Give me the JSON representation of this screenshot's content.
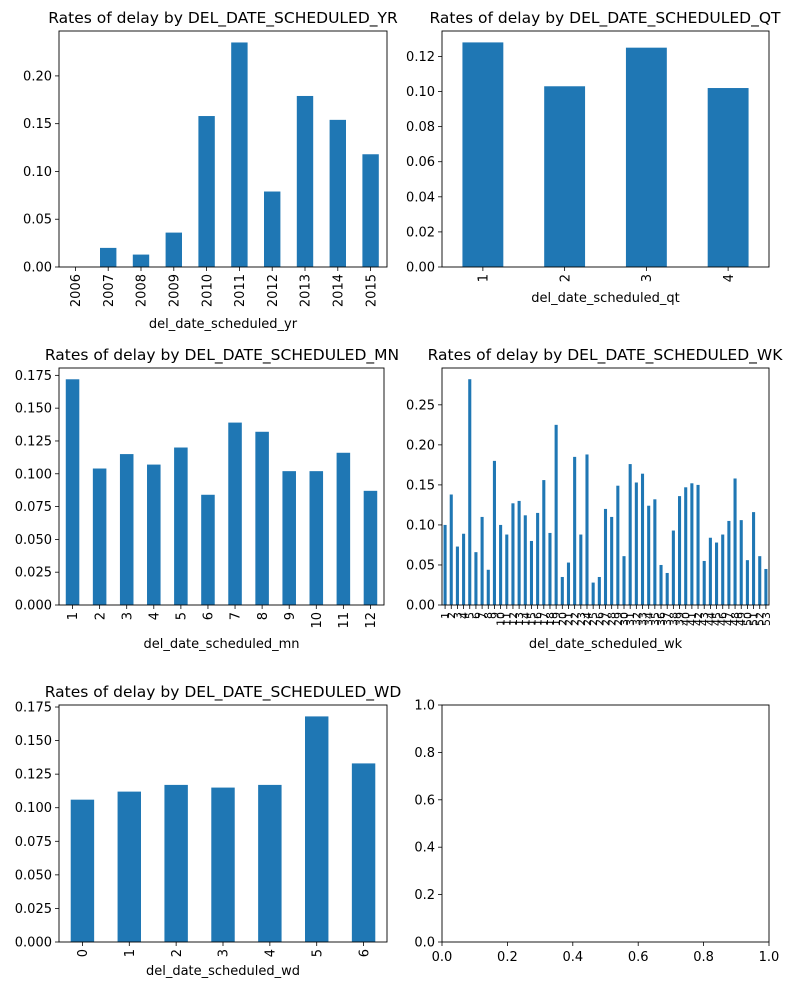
{
  "figure": {
    "background": "#ffffff",
    "bar_color": "#1f77b4"
  },
  "chart_data": [
    {
      "type": "bar",
      "title": "Rates of delay by DEL_DATE_SCHEDULED_YR",
      "xlabel": "del_date_scheduled_yr",
      "ylabel": "",
      "categories": [
        "2006",
        "2007",
        "2008",
        "2009",
        "2010",
        "2011",
        "2012",
        "2013",
        "2014",
        "2015"
      ],
      "values": [
        0.0,
        0.02,
        0.013,
        0.036,
        0.158,
        0.235,
        0.079,
        0.179,
        0.154,
        0.118
      ],
      "ylim": [
        0,
        0.247
      ],
      "yticks": [
        "0.00",
        "0.05",
        "0.10",
        "0.15",
        "0.20"
      ],
      "ytick_values": [
        0,
        0.05,
        0.1,
        0.15,
        0.2
      ],
      "grid": false,
      "legend": "none"
    },
    {
      "type": "bar",
      "title": "Rates of delay by DEL_DATE_SCHEDULED_QT",
      "xlabel": "del_date_scheduled_qt",
      "ylabel": "",
      "categories": [
        "1",
        "2",
        "3",
        "4"
      ],
      "values": [
        0.128,
        0.103,
        0.125,
        0.102
      ],
      "ylim": [
        0,
        0.1345
      ],
      "yticks": [
        "0.00",
        "0.02",
        "0.04",
        "0.06",
        "0.08",
        "0.10",
        "0.12"
      ],
      "ytick_values": [
        0,
        0.02,
        0.04,
        0.06,
        0.08,
        0.1,
        0.12
      ],
      "grid": false,
      "legend": "none"
    },
    {
      "type": "bar",
      "title": "Rates of delay by DEL_DATE_SCHEDULED_MN",
      "xlabel": "del_date_scheduled_mn",
      "ylabel": "",
      "categories": [
        "1",
        "2",
        "3",
        "4",
        "5",
        "6",
        "7",
        "8",
        "9",
        "10",
        "11",
        "12"
      ],
      "values": [
        0.172,
        0.104,
        0.115,
        0.107,
        0.12,
        0.084,
        0.139,
        0.132,
        0.102,
        0.102,
        0.116,
        0.087
      ],
      "ylim": [
        0,
        0.1806
      ],
      "yticks": [
        "0.000",
        "0.025",
        "0.050",
        "0.075",
        "0.100",
        "0.125",
        "0.150",
        "0.175"
      ],
      "ytick_values": [
        0,
        0.025,
        0.05,
        0.075,
        0.1,
        0.125,
        0.15,
        0.175
      ],
      "grid": false,
      "legend": "none"
    },
    {
      "type": "bar",
      "title": "Rates of delay by DEL_DATE_SCHEDULED_WK",
      "xlabel": "del_date_scheduled_wk",
      "ylabel": "",
      "categories": [
        "1",
        "2",
        "3",
        "4",
        "5",
        "6",
        "7",
        "8",
        "9",
        "10",
        "11",
        "12",
        "13",
        "14",
        "15",
        "16",
        "17",
        "18",
        "19",
        "20",
        "21",
        "22",
        "23",
        "24",
        "25",
        "26",
        "27",
        "28",
        "29",
        "30",
        "31",
        "32",
        "33",
        "34",
        "35",
        "36",
        "37",
        "38",
        "39",
        "40",
        "41",
        "42",
        "43",
        "44",
        "45",
        "46",
        "47",
        "48",
        "49",
        "50",
        "51",
        "52",
        "53"
      ],
      "values": [
        0.1,
        0.138,
        0.073,
        0.089,
        0.282,
        0.066,
        0.11,
        0.044,
        0.18,
        0.1,
        0.088,
        0.127,
        0.13,
        0.112,
        0.08,
        0.115,
        0.156,
        0.09,
        0.225,
        0.035,
        0.053,
        0.185,
        0.088,
        0.188,
        0.028,
        0.035,
        0.12,
        0.11,
        0.149,
        0.061,
        0.176,
        0.153,
        0.164,
        0.124,
        0.132,
        0.05,
        0.04,
        0.093,
        0.136,
        0.147,
        0.152,
        0.15,
        0.055,
        0.084,
        0.078,
        0.088,
        0.105,
        0.158,
        0.106,
        0.056,
        0.116,
        0.061,
        0.045
      ],
      "ylim": [
        0,
        0.296
      ],
      "yticks": [
        "0.00",
        "0.05",
        "0.10",
        "0.15",
        "0.20",
        "0.25"
      ],
      "ytick_values": [
        0,
        0.05,
        0.1,
        0.15,
        0.2,
        0.25
      ],
      "grid": false,
      "legend": "none"
    },
    {
      "type": "bar",
      "title": "Rates of delay by DEL_DATE_SCHEDULED_WD",
      "xlabel": "del_date_scheduled_wd",
      "ylabel": "",
      "categories": [
        "0",
        "1",
        "2",
        "3",
        "4",
        "5",
        "6"
      ],
      "values": [
        0.106,
        0.112,
        0.117,
        0.115,
        0.117,
        0.168,
        0.133
      ],
      "ylim": [
        0,
        0.1765
      ],
      "yticks": [
        "0.000",
        "0.025",
        "0.050",
        "0.075",
        "0.100",
        "0.125",
        "0.150",
        "0.175"
      ],
      "ytick_values": [
        0,
        0.025,
        0.05,
        0.075,
        0.1,
        0.125,
        0.15,
        0.175
      ],
      "grid": false,
      "legend": "none"
    },
    {
      "type": "empty",
      "title": "",
      "xlim": [
        0,
        1
      ],
      "ylim": [
        0,
        1
      ],
      "xticks": [
        "0.0",
        "0.2",
        "0.4",
        "0.6",
        "0.8",
        "1.0"
      ],
      "xtick_values": [
        0,
        0.2,
        0.4,
        0.6,
        0.8,
        1.0
      ],
      "yticks": [
        "0.0",
        "0.2",
        "0.4",
        "0.6",
        "0.8",
        "1.0"
      ],
      "ytick_values": [
        0,
        0.2,
        0.4,
        0.6,
        0.8,
        1.0
      ]
    }
  ]
}
